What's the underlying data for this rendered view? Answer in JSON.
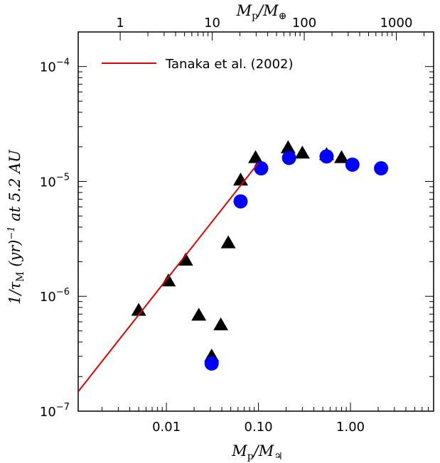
{
  "chart_data": {
    "type": "scatter",
    "xscale": "log",
    "yscale": "log",
    "xlim": [
      0.0011,
      8.0
    ],
    "ylim": [
      1e-07,
      0.0002
    ],
    "xlabel": "M_p/M_♃",
    "ylabel": "1/τ_M (yr)^-1 at 5.2 AU",
    "top_axis_label": "M_p/M_⊕",
    "x_ticks": [
      {
        "value": 0.01,
        "label": "0.01"
      },
      {
        "value": 0.1,
        "label": "0.10"
      },
      {
        "value": 1.0,
        "label": "1.00"
      }
    ],
    "y_ticks": [
      {
        "value": 1e-07,
        "base": "10",
        "exp": "−7"
      },
      {
        "value": 1e-06,
        "base": "10",
        "exp": "−6"
      },
      {
        "value": 1e-05,
        "base": "10",
        "exp": "−5"
      },
      {
        "value": 0.0001,
        "base": "10",
        "exp": "−4"
      }
    ],
    "top_ticks": [
      {
        "earth_mass": 1,
        "label": "1"
      },
      {
        "earth_mass": 10,
        "label": "10"
      },
      {
        "earth_mass": 100,
        "label": "100"
      },
      {
        "earth_mass": 1000,
        "label": "1000"
      }
    ],
    "earth_per_jupiter": 317.8,
    "legend": {
      "position": "top-left",
      "entries": [
        {
          "label": "Tanaka et al. (2002)",
          "color": "#e00000"
        }
      ]
    },
    "series": [
      {
        "marker": "triangle",
        "color": "#000000",
        "points": [
          [
            0.005,
            7.5e-07
          ],
          [
            0.0105,
            1.35e-06
          ],
          [
            0.0162,
            2.05e-06
          ],
          [
            0.0225,
            6.8e-07
          ],
          [
            0.031,
            3e-07
          ],
          [
            0.039,
            5.6e-07
          ],
          [
            0.047,
            2.9e-06
          ],
          [
            0.064,
            1.02e-05
          ],
          [
            0.093,
            1.6e-05
          ],
          [
            0.21,
            1.95e-05
          ],
          [
            0.3,
            1.75e-05
          ],
          [
            0.55,
            1.7e-05
          ],
          [
            0.8,
            1.6e-05
          ]
        ]
      },
      {
        "marker": "circle",
        "color": "#0000ff",
        "points": [
          [
            0.031,
            2.6e-07
          ],
          [
            0.064,
            6.7e-06
          ],
          [
            0.107,
            1.3e-05
          ],
          [
            0.215,
            1.6e-05
          ],
          [
            0.55,
            1.65e-05
          ],
          [
            1.05,
            1.4e-05
          ],
          [
            2.15,
            1.3e-05
          ]
        ]
      },
      {
        "marker": "line",
        "name": "Tanaka et al. (2002)",
        "color": "#e00000",
        "points": [
          [
            0.0011,
            1.48e-07
          ],
          [
            0.1,
            1.45e-05
          ]
        ]
      }
    ]
  }
}
